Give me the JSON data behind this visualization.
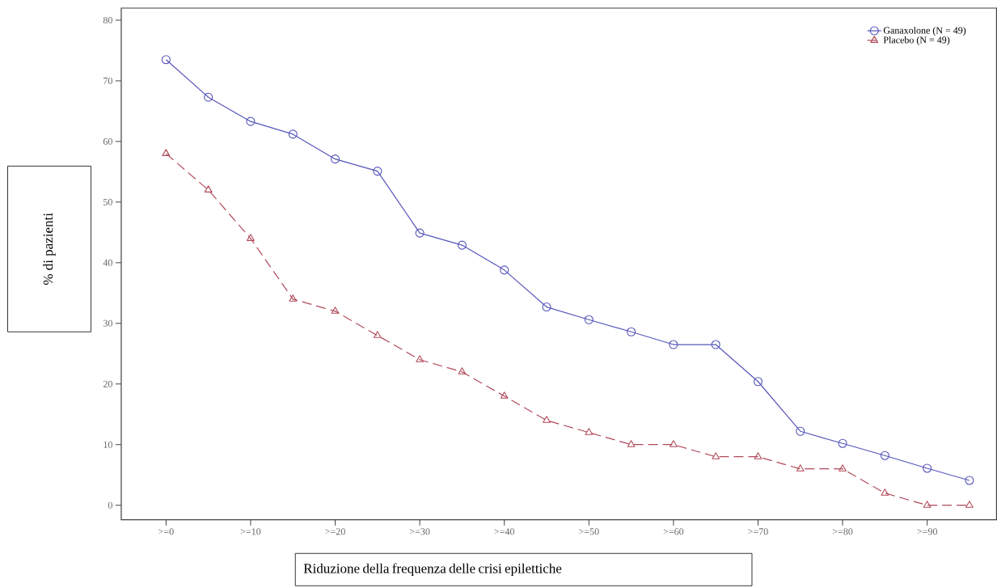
{
  "chart_data": {
    "type": "line",
    "xlabel": "Riduzione della frequenza delle crisi epilettiche",
    "ylabel": "% di pazienti",
    "categories": [
      ">=0",
      null,
      ">=10",
      null,
      ">=20",
      null,
      ">=30",
      null,
      ">=40",
      null,
      ">=50",
      null,
      ">=60",
      null,
      ">=70",
      null,
      ">=80",
      null,
      ">=90",
      null
    ],
    "ylim": [
      -2.4,
      82
    ],
    "yticks": [
      0,
      10,
      20,
      30,
      40,
      50,
      60,
      70,
      80
    ],
    "legend": "top right",
    "grid": false,
    "series": [
      {
        "name": "Ganaxolone (N = 49)",
        "color": "#5555bb",
        "marker": "circle",
        "line_style": "solid",
        "values": [
          73.5,
          67.3,
          63.3,
          61.2,
          57.1,
          55.1,
          44.9,
          42.9,
          38.8,
          32.7,
          30.6,
          28.6,
          26.5,
          26.5,
          20.4,
          12.2,
          10.2,
          8.2,
          6.1,
          4.1
        ]
      },
      {
        "name": "Placebo (N = 49)",
        "color": "#b04a5a",
        "marker": "triangle",
        "line_style": "dashed",
        "values": [
          58,
          52,
          44,
          34,
          32,
          28,
          24,
          22,
          18,
          14,
          12,
          10,
          10,
          8,
          8,
          6,
          6,
          2,
          0,
          0
        ]
      }
    ]
  }
}
